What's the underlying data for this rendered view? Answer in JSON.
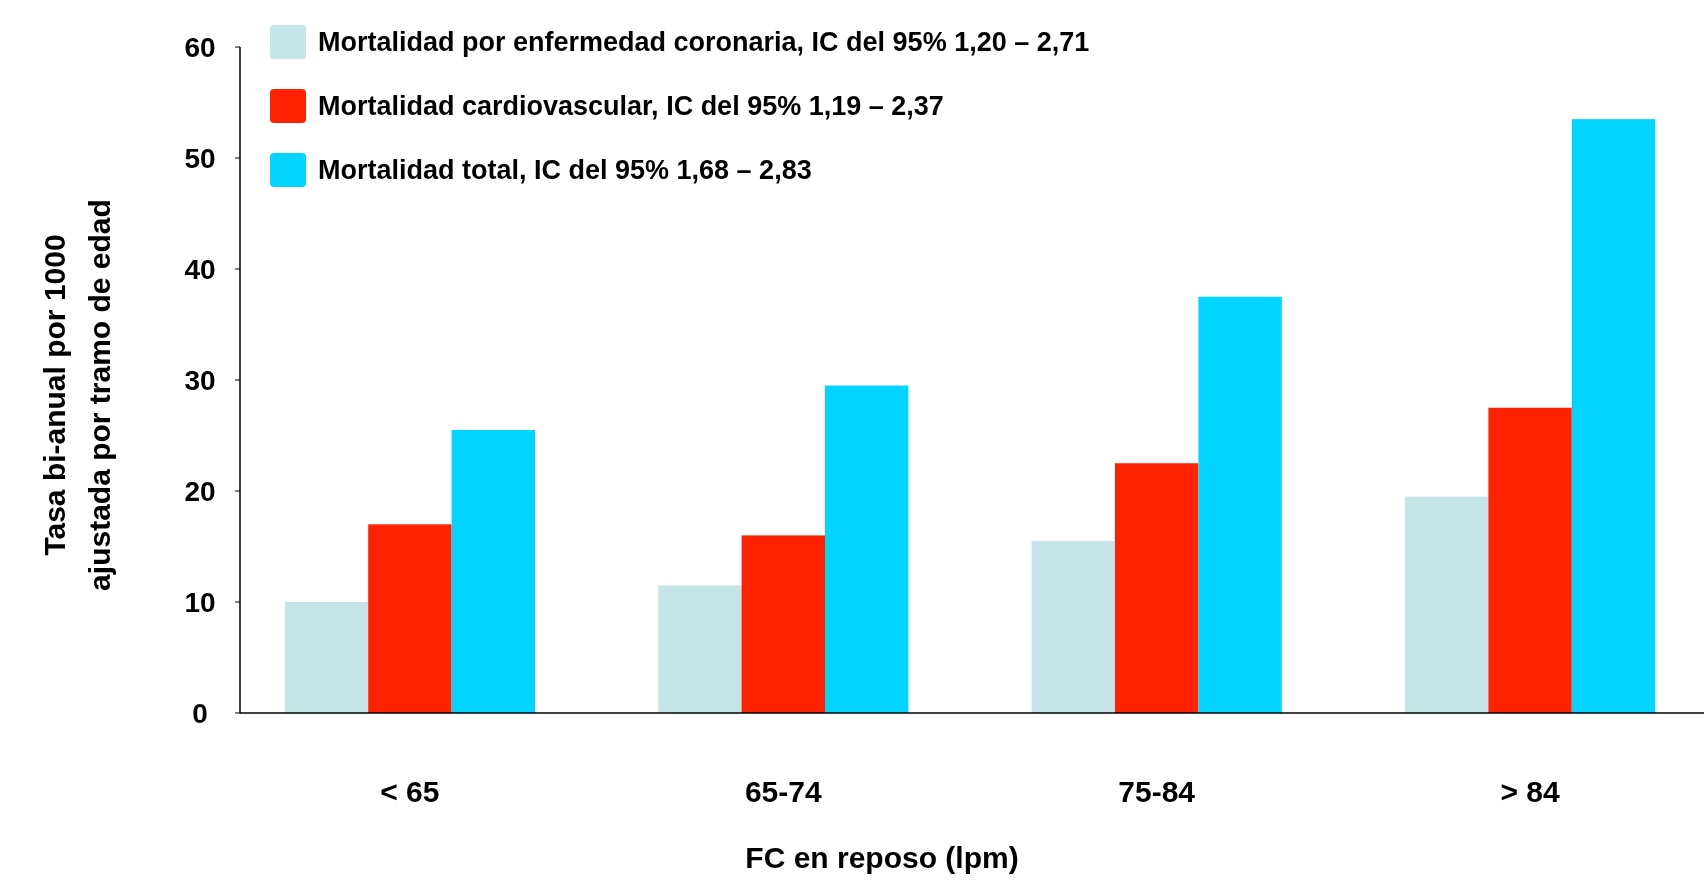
{
  "chart_data": {
    "type": "bar",
    "xlabel": "FC en reposo (lpm)",
    "ylabel": "Tasa bi-anual por 1000\najustada por tramo de edad",
    "categories": [
      "< 65",
      "65-74",
      "75-84",
      "> 84"
    ],
    "series": [
      {
        "name": "Mortalidad por enfermedad coronaria, IC del 95% 1,20 – 2,71",
        "color": "#c5e4e8",
        "values": [
          10,
          11.5,
          15.5,
          19.5
        ]
      },
      {
        "name": "Mortalidad cardiovascular, IC del 95% 1,19 – 2,37",
        "color": "#ff2200",
        "values": [
          17,
          16,
          22.5,
          27.5
        ]
      },
      {
        "name": "Mortalidad total, IC del 95% 1,68 – 2,83",
        "color": "#00d4ff",
        "values": [
          25.5,
          29.5,
          37.5,
          53.5
        ]
      }
    ],
    "ylim": [
      0,
      60
    ],
    "yticks": [
      0,
      10,
      20,
      30,
      40,
      50,
      60
    ],
    "legend": "top left"
  }
}
